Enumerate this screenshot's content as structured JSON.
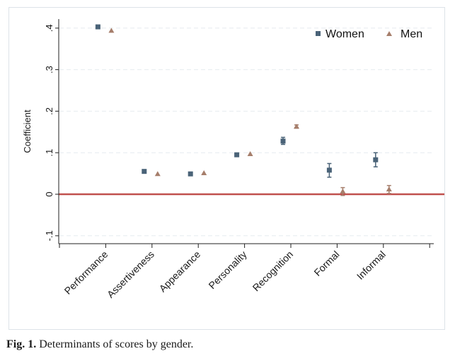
{
  "caption": {
    "label": "Fig. 1.",
    "text": " Determinants of scores by gender."
  },
  "colors": {
    "women": "#4a6378",
    "men": "#a67e6b",
    "zero_line": "#c0504d",
    "grid": "#e6ebef",
    "axis": "#222222"
  },
  "chart_data": {
    "type": "scatter",
    "title": "",
    "xlabel": "",
    "ylabel": "Coefficient",
    "ylim": [
      -0.12,
      0.43
    ],
    "yticks": [
      -0.1,
      0,
      0.1,
      0.2,
      0.3,
      0.4
    ],
    "yticklabels": [
      "-.1",
      "0",
      ".1",
      ".2",
      ".3",
      ".4"
    ],
    "grid": true,
    "reference_line_y": 0,
    "legend_position": "top-right",
    "categories": [
      "Performance",
      "Assertiveness",
      "Appearance",
      "Personality",
      "Recognition",
      "Formal",
      "Informal"
    ],
    "series": [
      {
        "name": "Women",
        "marker": "square",
        "values": [
          0.403,
          0.055,
          0.049,
          0.095,
          0.128,
          0.058,
          0.083
        ],
        "ci_low": [
          0.401,
          0.053,
          0.047,
          0.093,
          0.12,
          0.041,
          0.066
        ],
        "ci_high": [
          0.405,
          0.057,
          0.051,
          0.097,
          0.137,
          0.074,
          0.1
        ]
      },
      {
        "name": "Men",
        "marker": "triangle",
        "values": [
          0.394,
          0.049,
          0.051,
          0.097,
          0.163,
          0.007,
          0.012
        ],
        "ci_low": [
          0.392,
          0.047,
          0.049,
          0.095,
          0.159,
          -0.003,
          0.002
        ],
        "ci_high": [
          0.396,
          0.051,
          0.053,
          0.099,
          0.167,
          0.016,
          0.021
        ]
      }
    ]
  }
}
